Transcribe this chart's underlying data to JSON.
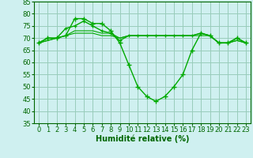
{
  "xlabel": "Humidité relative (%)",
  "background_color": "#cff0f0",
  "grid_color": "#99ccbb",
  "line_color": "#00aa00",
  "ylim": [
    35,
    85
  ],
  "xlim": [
    -0.5,
    23.5
  ],
  "yticks": [
    35,
    40,
    45,
    50,
    55,
    60,
    65,
    70,
    75,
    80,
    85
  ],
  "xticks": [
    0,
    1,
    2,
    3,
    4,
    5,
    6,
    7,
    8,
    9,
    10,
    11,
    12,
    13,
    14,
    15,
    16,
    17,
    18,
    19,
    20,
    21,
    22,
    23
  ],
  "series": [
    [
      68,
      70,
      70,
      71,
      78,
      78,
      76,
      76,
      73,
      68,
      59,
      50,
      46,
      44,
      46,
      50,
      55,
      65,
      72,
      71,
      68,
      68,
      70,
      68
    ],
    [
      68,
      70,
      70,
      74,
      75,
      77,
      75,
      73,
      72,
      69,
      71,
      71,
      71,
      71,
      71,
      71,
      71,
      71,
      72,
      71,
      68,
      68,
      70,
      68
    ],
    [
      68,
      69,
      70,
      71,
      73,
      73,
      73,
      72,
      72,
      70,
      71,
      71,
      71,
      71,
      71,
      71,
      71,
      71,
      72,
      71,
      68,
      68,
      69,
      68
    ],
    [
      68,
      69,
      70,
      71,
      72,
      72,
      72,
      71,
      71,
      70,
      71,
      71,
      71,
      71,
      71,
      71,
      71,
      71,
      71,
      71,
      68,
      68,
      69,
      68
    ]
  ],
  "series_markers": [
    true,
    true,
    false,
    false
  ],
  "tick_fontsize": 6.0,
  "xlabel_fontsize": 7.0
}
